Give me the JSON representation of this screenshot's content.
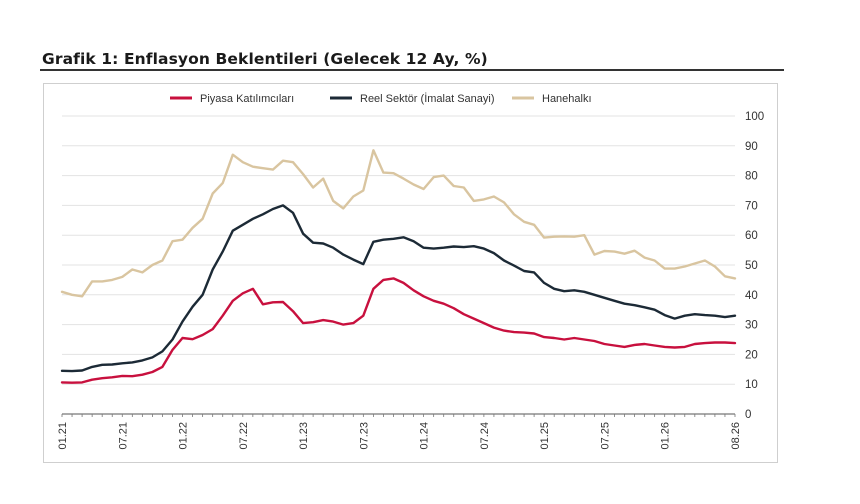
{
  "title": "Grafik 1: Enflasyon Beklentileri (Gelecek 12 Ay, %)",
  "chart_data": {
    "type": "line",
    "title": "Grafik 1: Enflasyon Beklentileri (Gelecek 12 Ay, %)",
    "xlabel": "",
    "ylabel": "",
    "ylim": [
      0,
      100
    ],
    "y_ticks": [
      0,
      10,
      20,
      30,
      40,
      50,
      60,
      70,
      80,
      90,
      100
    ],
    "x_tick_labels": [
      "01.21",
      "07.21",
      "01.22",
      "07.22",
      "01.23",
      "07.23",
      "01.24",
      "07.24",
      "01.25",
      "07.25",
      "01.26",
      "08.26"
    ],
    "x_tick_index": [
      0,
      6,
      12,
      18,
      24,
      30,
      36,
      42,
      48,
      54,
      60,
      67
    ],
    "grid": "horizontal",
    "legend_position": "top",
    "x": [
      "01.21",
      "02.21",
      "03.21",
      "04.21",
      "05.21",
      "06.21",
      "07.21",
      "08.21",
      "09.21",
      "10.21",
      "11.21",
      "12.21",
      "01.22",
      "02.22",
      "03.22",
      "04.22",
      "05.22",
      "06.22",
      "07.22",
      "08.22",
      "09.22",
      "10.22",
      "11.22",
      "12.22",
      "01.23",
      "02.23",
      "03.23",
      "04.23",
      "05.23",
      "06.23",
      "07.23",
      "08.23",
      "09.23",
      "10.23",
      "11.23",
      "12.23",
      "01.24",
      "02.24",
      "03.24",
      "04.24",
      "05.24",
      "06.24",
      "07.24",
      "08.24",
      "09.24",
      "10.24",
      "11.24",
      "12.24",
      "01.25",
      "02.25",
      "03.25",
      "04.25",
      "05.25",
      "06.25",
      "07.25",
      "08.25",
      "09.25",
      "10.25",
      "11.25",
      "12.25",
      "01.26",
      "02.26",
      "03.26",
      "04.26",
      "05.26",
      "06.26",
      "07.26",
      "08.26"
    ],
    "series": [
      {
        "name": "Piyasa Katılımcıları",
        "color": "#c8103e",
        "values": [
          10.6,
          10.5,
          10.6,
          11.5,
          12.0,
          12.3,
          12.8,
          12.7,
          13.2,
          14.1,
          15.8,
          21.5,
          25.5,
          25.1,
          26.5,
          28.5,
          33.0,
          38.0,
          40.5,
          42.0,
          36.8,
          37.5,
          37.6,
          34.5,
          30.5,
          30.8,
          31.5,
          31.0,
          30.0,
          30.5,
          33.0,
          42.0,
          45.0,
          45.5,
          44.0,
          41.5,
          39.5,
          38.0,
          37.0,
          35.5,
          33.5,
          32.0,
          30.5,
          29.0,
          28.0,
          27.5,
          27.3,
          27.0,
          25.8,
          25.5,
          25.0,
          25.5,
          25.0,
          24.5,
          23.5,
          23.0,
          22.5,
          23.2,
          23.5,
          23.0,
          22.5,
          22.3,
          22.5,
          23.5,
          23.8,
          24.0,
          24.0,
          23.8
        ]
      },
      {
        "name": "Reel Sektör (İmalat Sanayi)",
        "color": "#1c2a36",
        "values": [
          14.5,
          14.4,
          14.6,
          15.8,
          16.5,
          16.6,
          17.0,
          17.3,
          18.0,
          19.0,
          21.0,
          25.0,
          31.0,
          36.0,
          40.0,
          48.5,
          54.5,
          61.5,
          63.5,
          65.5,
          67.0,
          68.8,
          70.0,
          67.5,
          60.5,
          57.5,
          57.2,
          55.8,
          53.5,
          51.8,
          50.3,
          57.8,
          58.5,
          58.8,
          59.3,
          58.0,
          55.8,
          55.5,
          55.8,
          56.2,
          56.0,
          56.3,
          55.5,
          54.0,
          51.5,
          49.8,
          48.0,
          47.5,
          44.0,
          42.0,
          41.2,
          41.5,
          41.0,
          40.0,
          39.0,
          38.0,
          37.0,
          36.5,
          35.8,
          35.0,
          33.2,
          32.0,
          33.0,
          33.5,
          33.2,
          33.0,
          32.5,
          33.0
        ]
      },
      {
        "name": "Hanehalkı",
        "color": "#d9c5a0",
        "values": [
          41.0,
          40.0,
          39.5,
          44.5,
          44.5,
          45.0,
          46.0,
          48.5,
          47.5,
          50.0,
          51.5,
          58.0,
          58.5,
          62.5,
          65.5,
          74.0,
          77.5,
          87.0,
          84.5,
          83.0,
          82.5,
          82.0,
          85.0,
          84.5,
          80.5,
          76.0,
          79.0,
          71.5,
          69.0,
          73.0,
          75.0,
          88.5,
          81.0,
          80.8,
          79.0,
          77.0,
          75.5,
          79.5,
          80.0,
          76.5,
          76.0,
          71.5,
          72.0,
          73.0,
          71.0,
          67.0,
          64.5,
          63.5,
          59.2,
          59.5,
          59.6,
          59.5,
          60.0,
          53.5,
          54.7,
          54.5,
          53.8,
          54.8,
          52.5,
          51.5,
          48.8,
          48.8,
          49.5,
          50.5,
          51.5,
          49.5,
          46.2,
          45.5
        ]
      }
    ]
  }
}
